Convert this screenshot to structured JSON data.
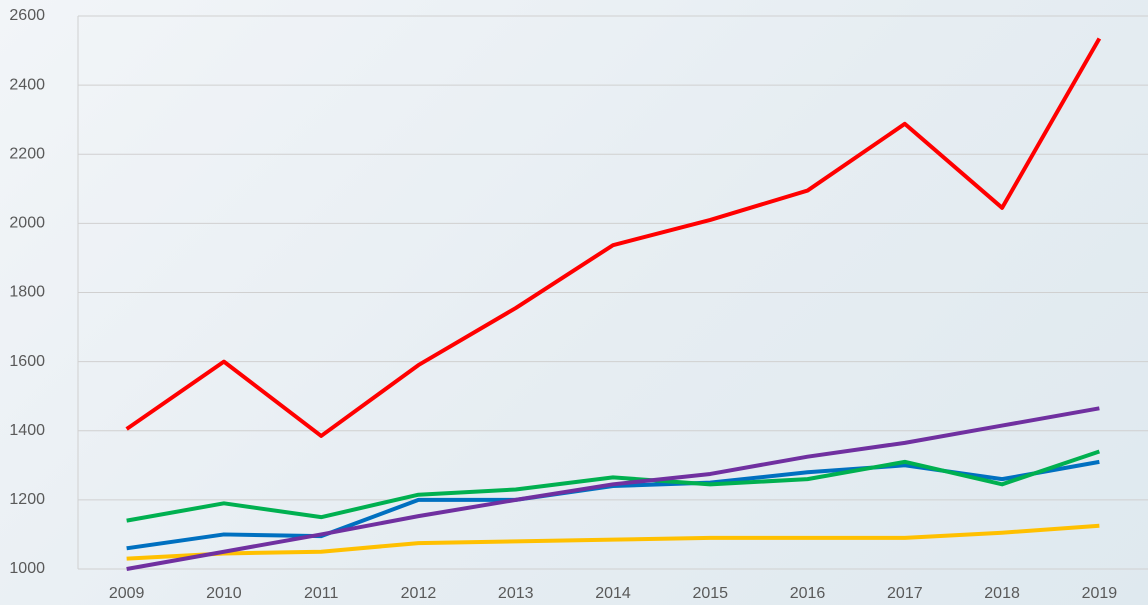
{
  "chart_data": {
    "type": "line",
    "categories": [
      "2009",
      "2010",
      "2011",
      "2012",
      "2013",
      "2014",
      "2015",
      "2016",
      "2017",
      "2018",
      "2019"
    ],
    "series": [
      {
        "color": "#ffc000",
        "values": [
          1030,
          1045,
          1050,
          1075,
          1080,
          1085,
          1090,
          1090,
          1090,
          1105,
          1125
        ]
      },
      {
        "color": "#0070c0",
        "values": [
          1060,
          1100,
          1095,
          1200,
          1200,
          1240,
          1250,
          1280,
          1300,
          1260,
          1310
        ]
      },
      {
        "color": "#00b050",
        "values": [
          1140,
          1190,
          1150,
          1215,
          1230,
          1265,
          1245,
          1260,
          1310,
          1245,
          1340
        ]
      },
      {
        "color": "#7030a0",
        "values": [
          1000,
          1050,
          1100,
          1153,
          1200,
          1245,
          1275,
          1325,
          1365,
          1415,
          1465
        ]
      },
      {
        "color": "#ff0000",
        "values": [
          1405,
          1600,
          1385,
          1590,
          1755,
          1937,
          2010,
          2095,
          2288,
          2045,
          2535
        ]
      }
    ],
    "ylim": [
      1000,
      2600
    ],
    "yticks": [
      1000,
      1200,
      1400,
      1600,
      1800,
      2000,
      2200,
      2400,
      2600
    ],
    "grid": true
  }
}
